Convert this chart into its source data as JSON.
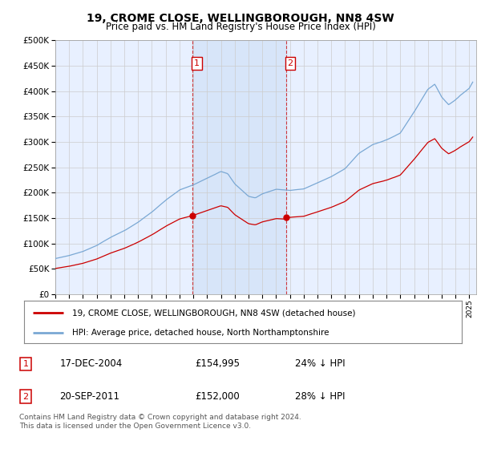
{
  "title": "19, CROME CLOSE, WELLINGBOROUGH, NN8 4SW",
  "subtitle": "Price paid vs. HM Land Registry's House Price Index (HPI)",
  "title_fontsize": 10,
  "subtitle_fontsize": 8.5,
  "ylim": [
    0,
    500000
  ],
  "yticks": [
    0,
    50000,
    100000,
    150000,
    200000,
    250000,
    300000,
    350000,
    400000,
    450000,
    500000
  ],
  "xlim_start": 1995.0,
  "xlim_end": 2025.5,
  "xtick_years": [
    1995,
    1996,
    1997,
    1998,
    1999,
    2000,
    2001,
    2002,
    2003,
    2004,
    2005,
    2006,
    2007,
    2008,
    2009,
    2010,
    2011,
    2012,
    2013,
    2014,
    2015,
    2016,
    2017,
    2018,
    2019,
    2020,
    2021,
    2022,
    2023,
    2024,
    2025
  ],
  "hpi_color": "#7aa8d4",
  "price_color": "#cc0000",
  "bg_color": "#e8f0ff",
  "span_color": "#d4e4f8",
  "grid_color": "#cccccc",
  "purchase1_x": 2004.96,
  "purchase1_y": 154995,
  "purchase1_label": "1",
  "purchase1_date": "17-DEC-2004",
  "purchase1_price": "£154,995",
  "purchase1_hpi": "24% ↓ HPI",
  "purchase2_x": 2011.72,
  "purchase2_y": 152000,
  "purchase2_label": "2",
  "purchase2_date": "20-SEP-2011",
  "purchase2_price": "£152,000",
  "purchase2_hpi": "28% ↓ HPI",
  "legend_line1": "19, CROME CLOSE, WELLINGBOROUGH, NN8 4SW (detached house)",
  "legend_line2": "HPI: Average price, detached house, North Northamptonshire",
  "footer": "Contains HM Land Registry data © Crown copyright and database right 2024.\nThis data is licensed under the Open Government Licence v3.0."
}
